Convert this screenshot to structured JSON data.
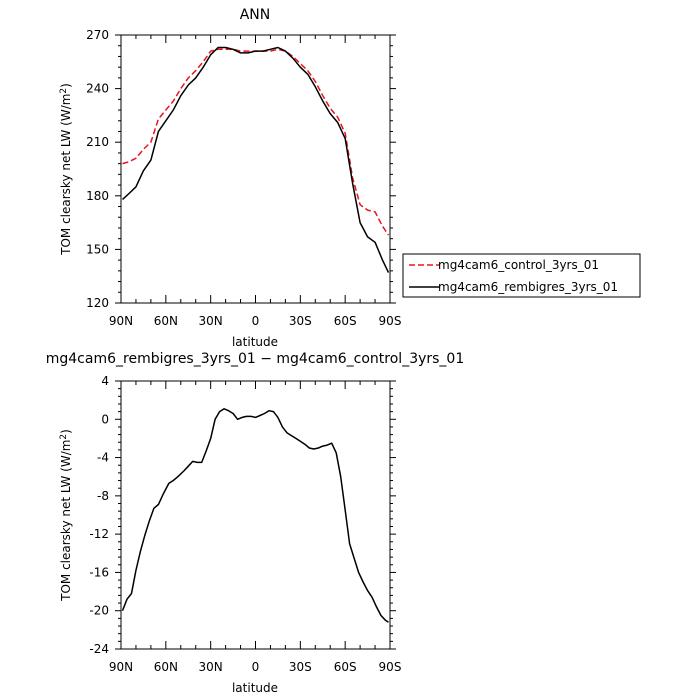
{
  "chart_data": [
    {
      "type": "line",
      "title": "ANN",
      "xlabel": "latitude",
      "ylabel": "TOM clearsky net LW (W/m²)",
      "xlim": [
        -90,
        90
      ],
      "ylim": [
        120,
        270
      ],
      "xticks": [
        -90,
        -60,
        -30,
        0,
        30,
        60,
        90
      ],
      "xtick_labels": [
        "90N",
        "60N",
        "30N",
        "0",
        "30S",
        "60S",
        "90S"
      ],
      "yticks": [
        120,
        150,
        180,
        210,
        240,
        270
      ],
      "ytick_labels": [
        "120",
        "150",
        "180",
        "210",
        "240",
        "270"
      ],
      "legend_placement": "right",
      "series": [
        {
          "name": "mg4cam6_control_3yrs_01",
          "color": "#e8141e",
          "style": "dashed",
          "x": [
            -89,
            -85,
            -80,
            -75,
            -70,
            -65,
            -60,
            -55,
            -50,
            -45,
            -40,
            -35,
            -30,
            -25,
            -20,
            -15,
            -10,
            -5,
            0,
            5,
            10,
            15,
            20,
            25,
            30,
            35,
            40,
            45,
            50,
            55,
            60,
            65,
            70,
            75,
            80,
            85,
            89
          ],
          "y": [
            198,
            199,
            201,
            206,
            210,
            223,
            228,
            233,
            240,
            246,
            250,
            255,
            261,
            262,
            262,
            262,
            261,
            261,
            261,
            261,
            261,
            262,
            261,
            258,
            254,
            250,
            244,
            236,
            229,
            224,
            215,
            190,
            175,
            172,
            171,
            163,
            158
          ]
        },
        {
          "name": "mg4cam6_rembigres_3yrs_01",
          "color": "#000000",
          "style": "solid",
          "x": [
            -89,
            -85,
            -80,
            -75,
            -70,
            -65,
            -60,
            -55,
            -50,
            -45,
            -40,
            -35,
            -30,
            -25,
            -20,
            -15,
            -10,
            -5,
            0,
            5,
            10,
            15,
            20,
            25,
            30,
            35,
            40,
            45,
            50,
            55,
            60,
            65,
            70,
            75,
            80,
            85,
            89
          ],
          "y": [
            178,
            181,
            185,
            194,
            200,
            216,
            222,
            228,
            236,
            242,
            246,
            252,
            259,
            263,
            263,
            262,
            260,
            260,
            261,
            261,
            262,
            263,
            261,
            257,
            252,
            248,
            241,
            233,
            226,
            221,
            212,
            187,
            165,
            157,
            154,
            144,
            137
          ]
        }
      ]
    },
    {
      "type": "line",
      "title": "mg4cam6_rembigres_3yrs_01 − mg4cam6_control_3yrs_01",
      "xlabel": "latitude",
      "ylabel": "TOM clearsky net LW (W/m²)",
      "xlim": [
        -90,
        90
      ],
      "ylim": [
        -24,
        4
      ],
      "xticks": [
        -90,
        -60,
        -30,
        0,
        30,
        60,
        90
      ],
      "xtick_labels": [
        "90N",
        "60N",
        "30N",
        "0",
        "30S",
        "60S",
        "90S"
      ],
      "yticks": [
        4,
        0,
        -4,
        -8,
        -12,
        -16,
        -20,
        -24
      ],
      "ytick_labels": [
        "4",
        "0",
        "-4",
        "-8",
        "-12",
        "-16",
        "-20",
        "-24"
      ],
      "series": [
        {
          "color": "#000000",
          "style": "solid",
          "x": [
            -89,
            -86,
            -83,
            -80,
            -77,
            -74,
            -71,
            -68,
            -65,
            -62,
            -58,
            -55,
            -52,
            -48,
            -45,
            -42,
            -39,
            -36,
            -33,
            -30,
            -27,
            -24,
            -21,
            -18,
            -15,
            -12,
            -9,
            -6,
            -3,
            0,
            3,
            6,
            9,
            12,
            15,
            18,
            21,
            24,
            27,
            30,
            33,
            36,
            39,
            42,
            45,
            48,
            51,
            54,
            57,
            60,
            63,
            66,
            69,
            72,
            75,
            78,
            81,
            84,
            87,
            89
          ],
          "y": [
            -20,
            -18.8,
            -18.2,
            -15.8,
            -13.8,
            -12.1,
            -10.6,
            -9.3,
            -8.9,
            -7.9,
            -6.7,
            -6.4,
            -6.0,
            -5.4,
            -4.9,
            -4.4,
            -4.5,
            -4.5,
            -3.3,
            -2.0,
            0.0,
            0.8,
            1.1,
            0.9,
            0.6,
            0.0,
            0.2,
            0.3,
            0.3,
            0.2,
            0.4,
            0.6,
            0.9,
            0.8,
            0.2,
            -0.8,
            -1.4,
            -1.7,
            -2.0,
            -2.3,
            -2.6,
            -3.0,
            -3.1,
            -3.0,
            -2.8,
            -2.7,
            -2.5,
            -3.5,
            -6.0,
            -9.5,
            -13.0,
            -14.5,
            -16.0,
            -17.0,
            -17.9,
            -18.6,
            -19.6,
            -20.5,
            -21.0,
            -21.2
          ]
        }
      ]
    }
  ]
}
